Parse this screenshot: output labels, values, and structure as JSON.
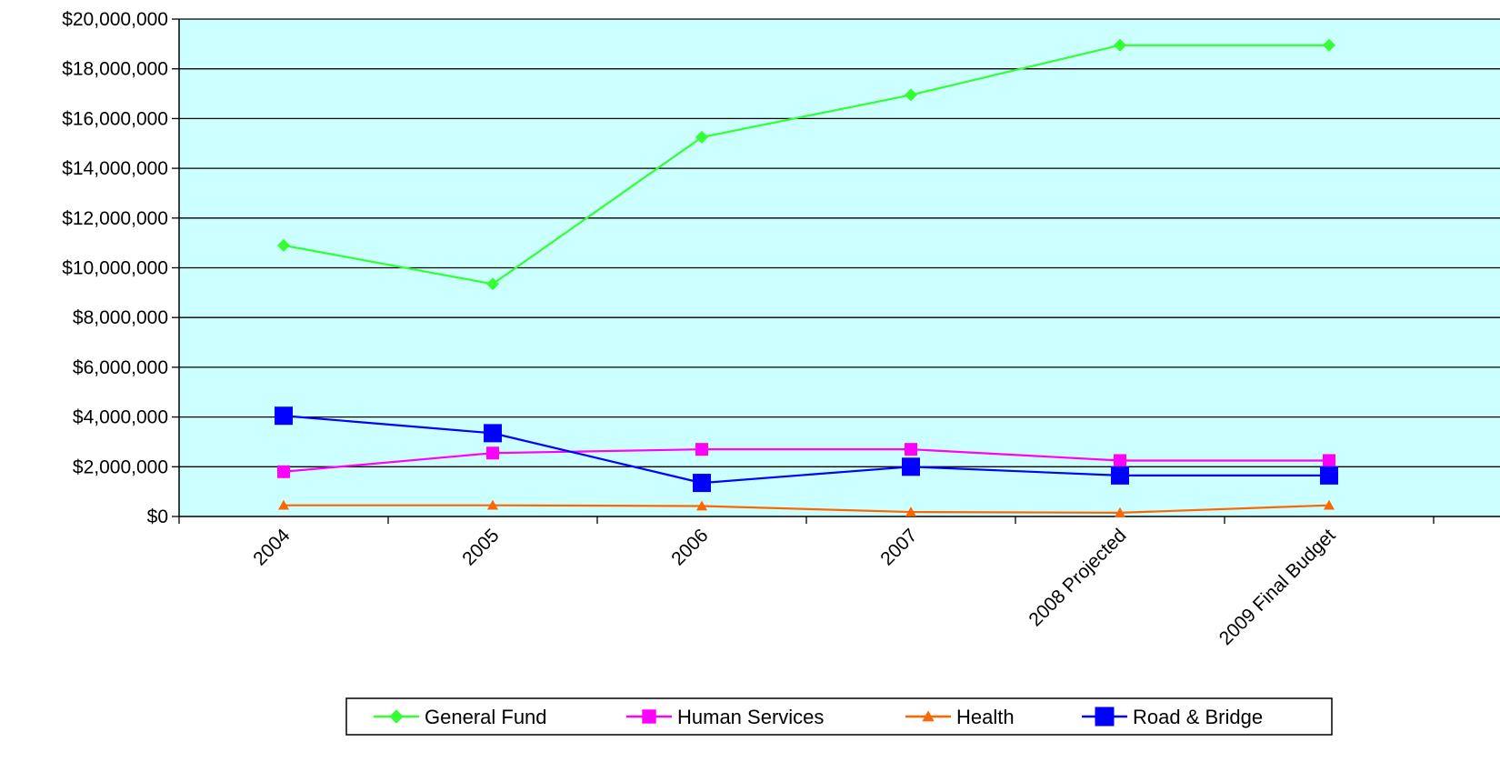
{
  "chart_data": {
    "type": "line",
    "title": "",
    "xlabel": "",
    "ylabel": "",
    "categories": [
      "2004",
      "2005",
      "2006",
      "2007",
      "2008 Projected",
      "2009 Final Budget"
    ],
    "ylim": [
      0,
      20000000
    ],
    "y_ticks": [
      0,
      2000000,
      4000000,
      6000000,
      8000000,
      10000000,
      12000000,
      14000000,
      16000000,
      18000000,
      20000000
    ],
    "y_tick_labels": [
      "$0",
      "$2,000,000",
      "$4,000,000",
      "$6,000,000",
      "$8,000,000",
      "$10,000,000",
      "$12,000,000",
      "$14,000,000",
      "$16,000,000",
      "$18,000,000",
      "$20,000,000"
    ],
    "grid": true,
    "plot_background": "#ccffff",
    "legend_position": "bottom",
    "series": [
      {
        "name": "General Fund",
        "color": "#33ff33",
        "marker": "diamond",
        "values": [
          10900000,
          9350000,
          15250000,
          16950000,
          18950000,
          18950000
        ]
      },
      {
        "name": "Human Services",
        "color": "#ff00ff",
        "marker": "square",
        "values": [
          1800000,
          2550000,
          2700000,
          2700000,
          2250000,
          2250000
        ]
      },
      {
        "name": "Health",
        "color": "#ff6600",
        "marker": "triangle",
        "values": [
          450000,
          450000,
          420000,
          180000,
          150000,
          450000
        ]
      },
      {
        "name": "Road & Bridge",
        "color": "#0000ff",
        "marker": "big-square",
        "values": [
          4050000,
          3350000,
          1350000,
          2000000,
          1650000,
          1650000
        ]
      }
    ]
  }
}
